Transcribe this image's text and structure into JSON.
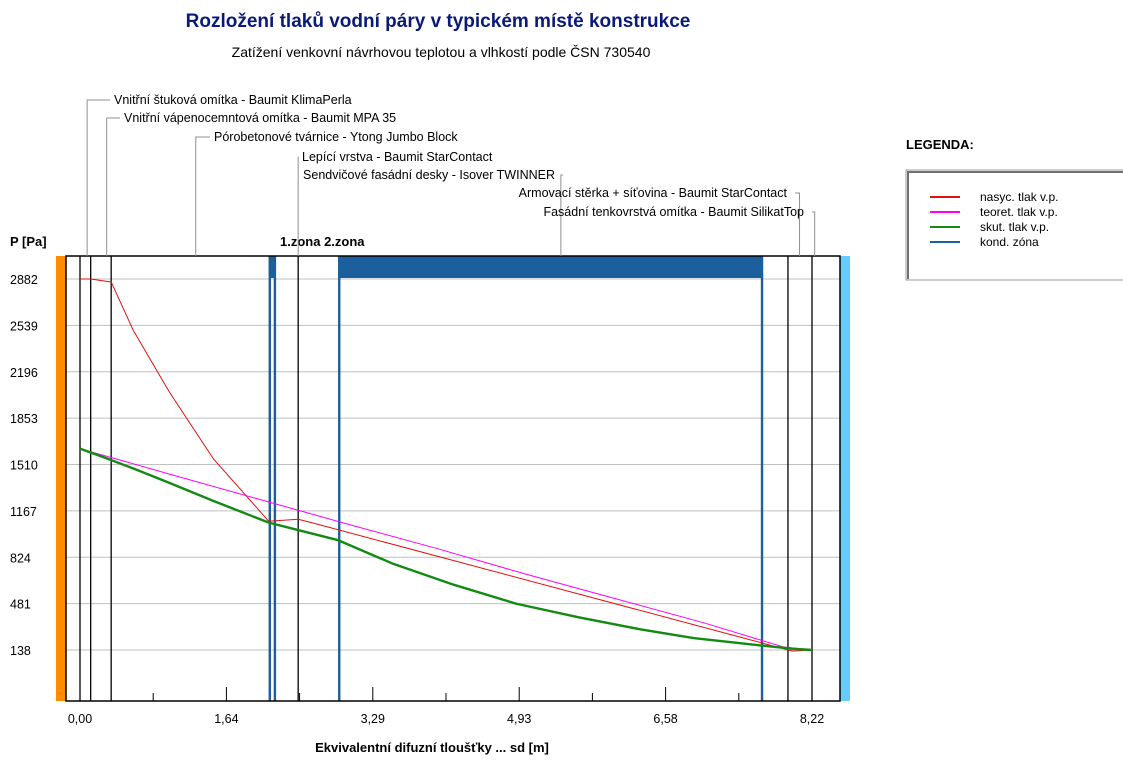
{
  "chart_data": {
    "type": "line",
    "title": "Rozložení tlaků vodní páry v typickém místě konstrukce",
    "subtitle": "Zatížení venkovní návrhovou teplotou a vlhkostí podle ČSN 730540",
    "ylabel": "P [Pa]",
    "xlabel": "Ekvivalentní difuzní tloušťky ... sd [m]",
    "xlim": [
      0,
      8.4
    ],
    "ylim": [
      -250,
      3050
    ],
    "yticks": [
      {
        "value": 2882,
        "label": "2882"
      },
      {
        "value": 2539,
        "label": "2539"
      },
      {
        "value": 2196,
        "label": "2196"
      },
      {
        "value": 1853,
        "label": "1853"
      },
      {
        "value": 1510,
        "label": "1510"
      },
      {
        "value": 1167,
        "label": "1167"
      },
      {
        "value": 824,
        "label": "824"
      },
      {
        "value": 481,
        "label": "481"
      },
      {
        "value": 138,
        "label": "138"
      }
    ],
    "xticks": [
      {
        "value": 0,
        "label": "0,00"
      },
      {
        "value": 1.644,
        "label": "1,64"
      },
      {
        "value": 3.288,
        "label": "3,29"
      },
      {
        "value": 4.932,
        "label": "4,93"
      },
      {
        "value": 6.576,
        "label": "6,58"
      },
      {
        "value": 8.22,
        "label": "8,22"
      }
    ],
    "layers": [
      {
        "name": "Vnitřní štuková omítka - Baumit KlimaPerla",
        "x": 0.08
      },
      {
        "name": "Vnitřní vápenocemntová omítka - Baumit MPA 35",
        "x": 0.3
      },
      {
        "name": "Pórobetonové tvárnice - Ytong Jumbo Block",
        "x": 1.3
      },
      {
        "name": "Lepící vrstva - Baumit StarContact",
        "x": 2.45
      },
      {
        "name": "Sendvičové fasádní desky - Isover TWINNER",
        "x": 5.4
      },
      {
        "name": "Armovací stěrka + síťovina - Baumit StarContact",
        "x": 8.08
      },
      {
        "name": "Fasádní tenkovrstvá omítka - Baumit SilikatTop",
        "x": 8.25
      }
    ],
    "boundaries": [
      0.12,
      0.35,
      2.45,
      7.95,
      8.22
    ],
    "zones": [
      {
        "label": "1.zona",
        "x0": 2.12,
        "x1": 2.2
      },
      {
        "label": "2.zona",
        "x0": 2.9,
        "x1": 7.67
      }
    ],
    "zone_label_text": "1.zona 2.zona",
    "series": [
      {
        "name": "nasyc. tlak v.p.",
        "color": "#e01010",
        "width": 1,
        "x": [
          0,
          0.12,
          0.35,
          0.6,
          1.0,
          1.5,
          2.12,
          2.45,
          2.6,
          8.0,
          8.22
        ],
        "y": [
          2882,
          2882,
          2860,
          2500,
          2050,
          1550,
          1090,
          1105,
          1080,
          130,
          138
        ]
      },
      {
        "name": "teoret. tlak v.p.",
        "color": "#ff00ff",
        "width": 1,
        "x": [
          0,
          1.0,
          2.0,
          3.0,
          4.0,
          5.0,
          6.0,
          7.0,
          7.9,
          8.22
        ],
        "y": [
          1627,
          1440,
          1255,
          1070,
          890,
          700,
          520,
          340,
          160,
          138
        ]
      },
      {
        "name": "skut. tlak v.p.",
        "color": "#138a13",
        "width": 2.4,
        "x": [
          0,
          0.3,
          0.6,
          1.0,
          1.5,
          2.12,
          2.45,
          2.9,
          3.5,
          4.2,
          4.9,
          5.6,
          6.3,
          6.9,
          7.67,
          8.0,
          8.22
        ],
        "y": [
          1627,
          1555,
          1480,
          1375,
          1240,
          1080,
          1025,
          950,
          780,
          620,
          480,
          380,
          290,
          225,
          170,
          148,
          138
        ]
      },
      {
        "name": "kond. zóna",
        "color": "#1b5f9d",
        "width": 2.4,
        "x": [],
        "y": []
      }
    ],
    "legend_title": "LEGENDA:",
    "legend_position": "right",
    "grid": true,
    "colors": {
      "interior_bar": "#ff8c00",
      "exterior_bar": "#66ccff",
      "zone": "#1b5f9d",
      "title": "#0a1a78",
      "grid": "#c0c0c0"
    }
  }
}
